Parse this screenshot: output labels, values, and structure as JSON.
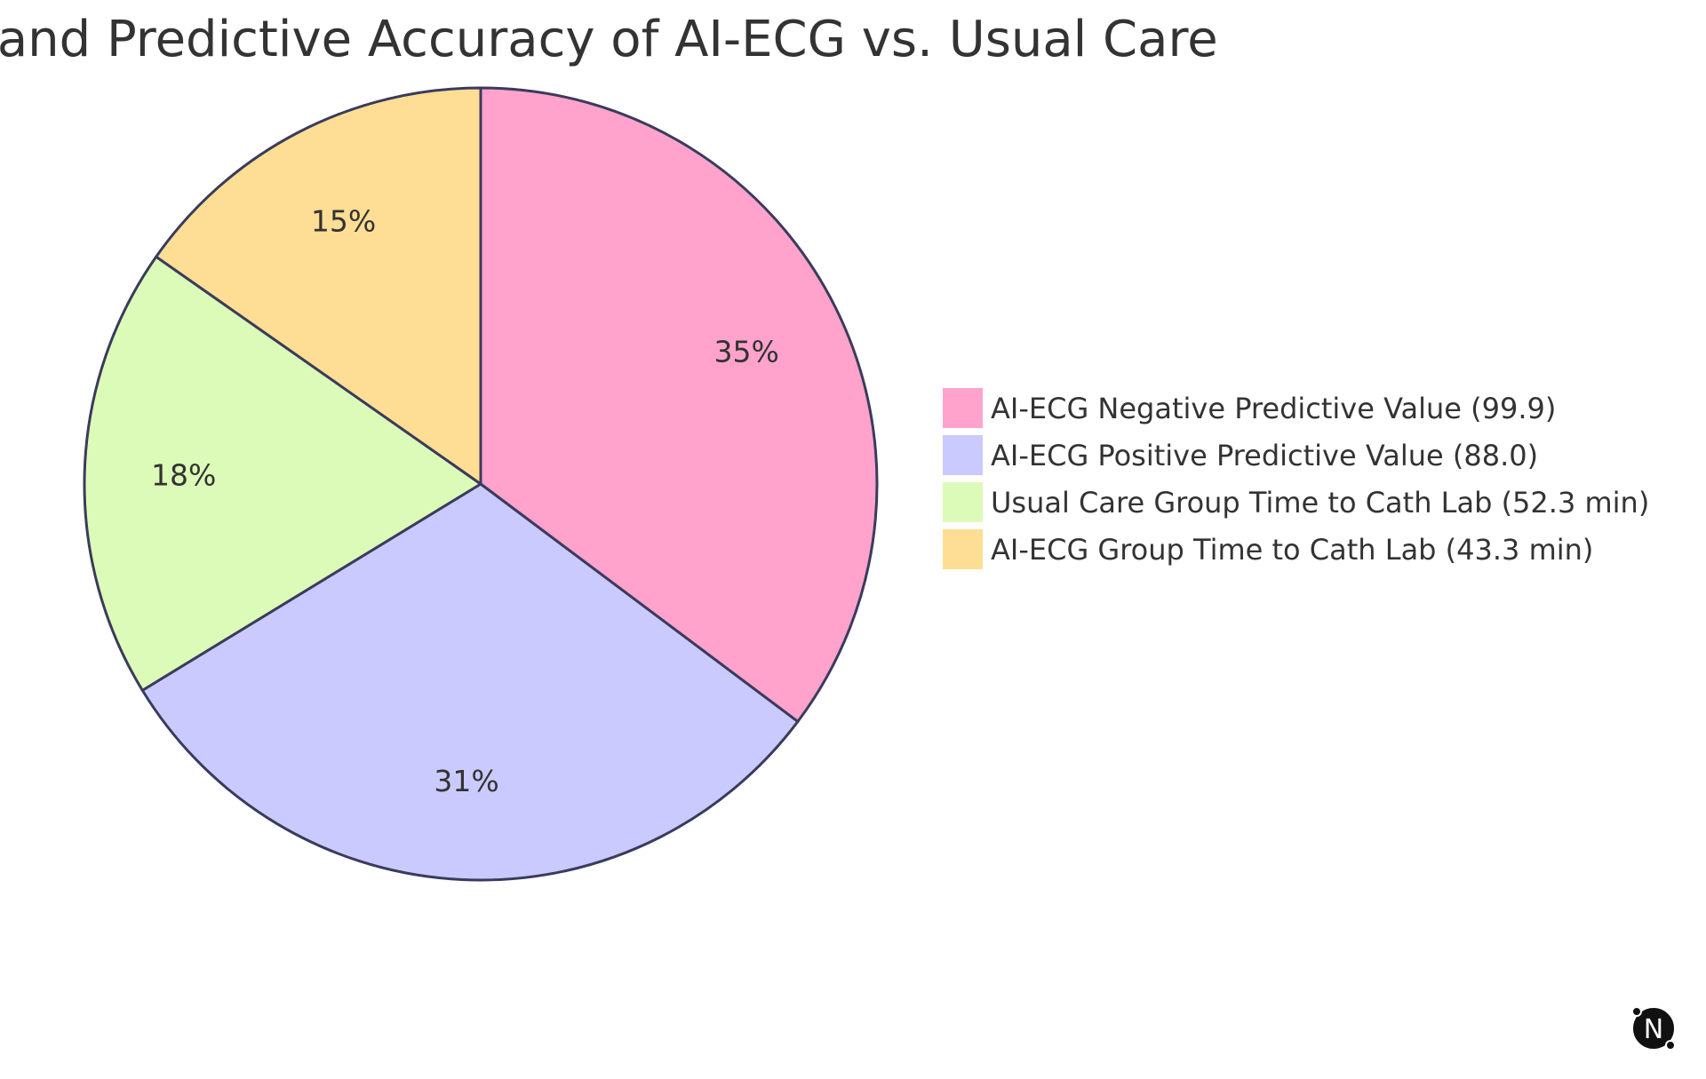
{
  "chart_data": {
    "type": "pie",
    "title": "Efficiency and Predictive Accuracy of AI-ECG vs. Usual Care",
    "slices": [
      {
        "label": "AI-ECG Negative Predictive Value (99.9)",
        "value": 99.9,
        "percent_label": "35%",
        "color": "#FFA3CD"
      },
      {
        "label": "AI-ECG Positive Predictive Value (88.0)",
        "value": 88.0,
        "percent_label": "31%",
        "color": "#CACAFF"
      },
      {
        "label": "Usual Care Group Time to Cath Lab (52.3 min)",
        "value": 52.3,
        "percent_label": "18%",
        "color": "#DDFBB8"
      },
      {
        "label": "AI-ECG Group Time to Cath Lab (43.3 min)",
        "value": 43.3,
        "percent_label": "15%",
        "color": "#FEDE94"
      }
    ],
    "legend_position": "right"
  },
  "logo": {
    "icon": "n-logo-icon",
    "text": "N"
  }
}
